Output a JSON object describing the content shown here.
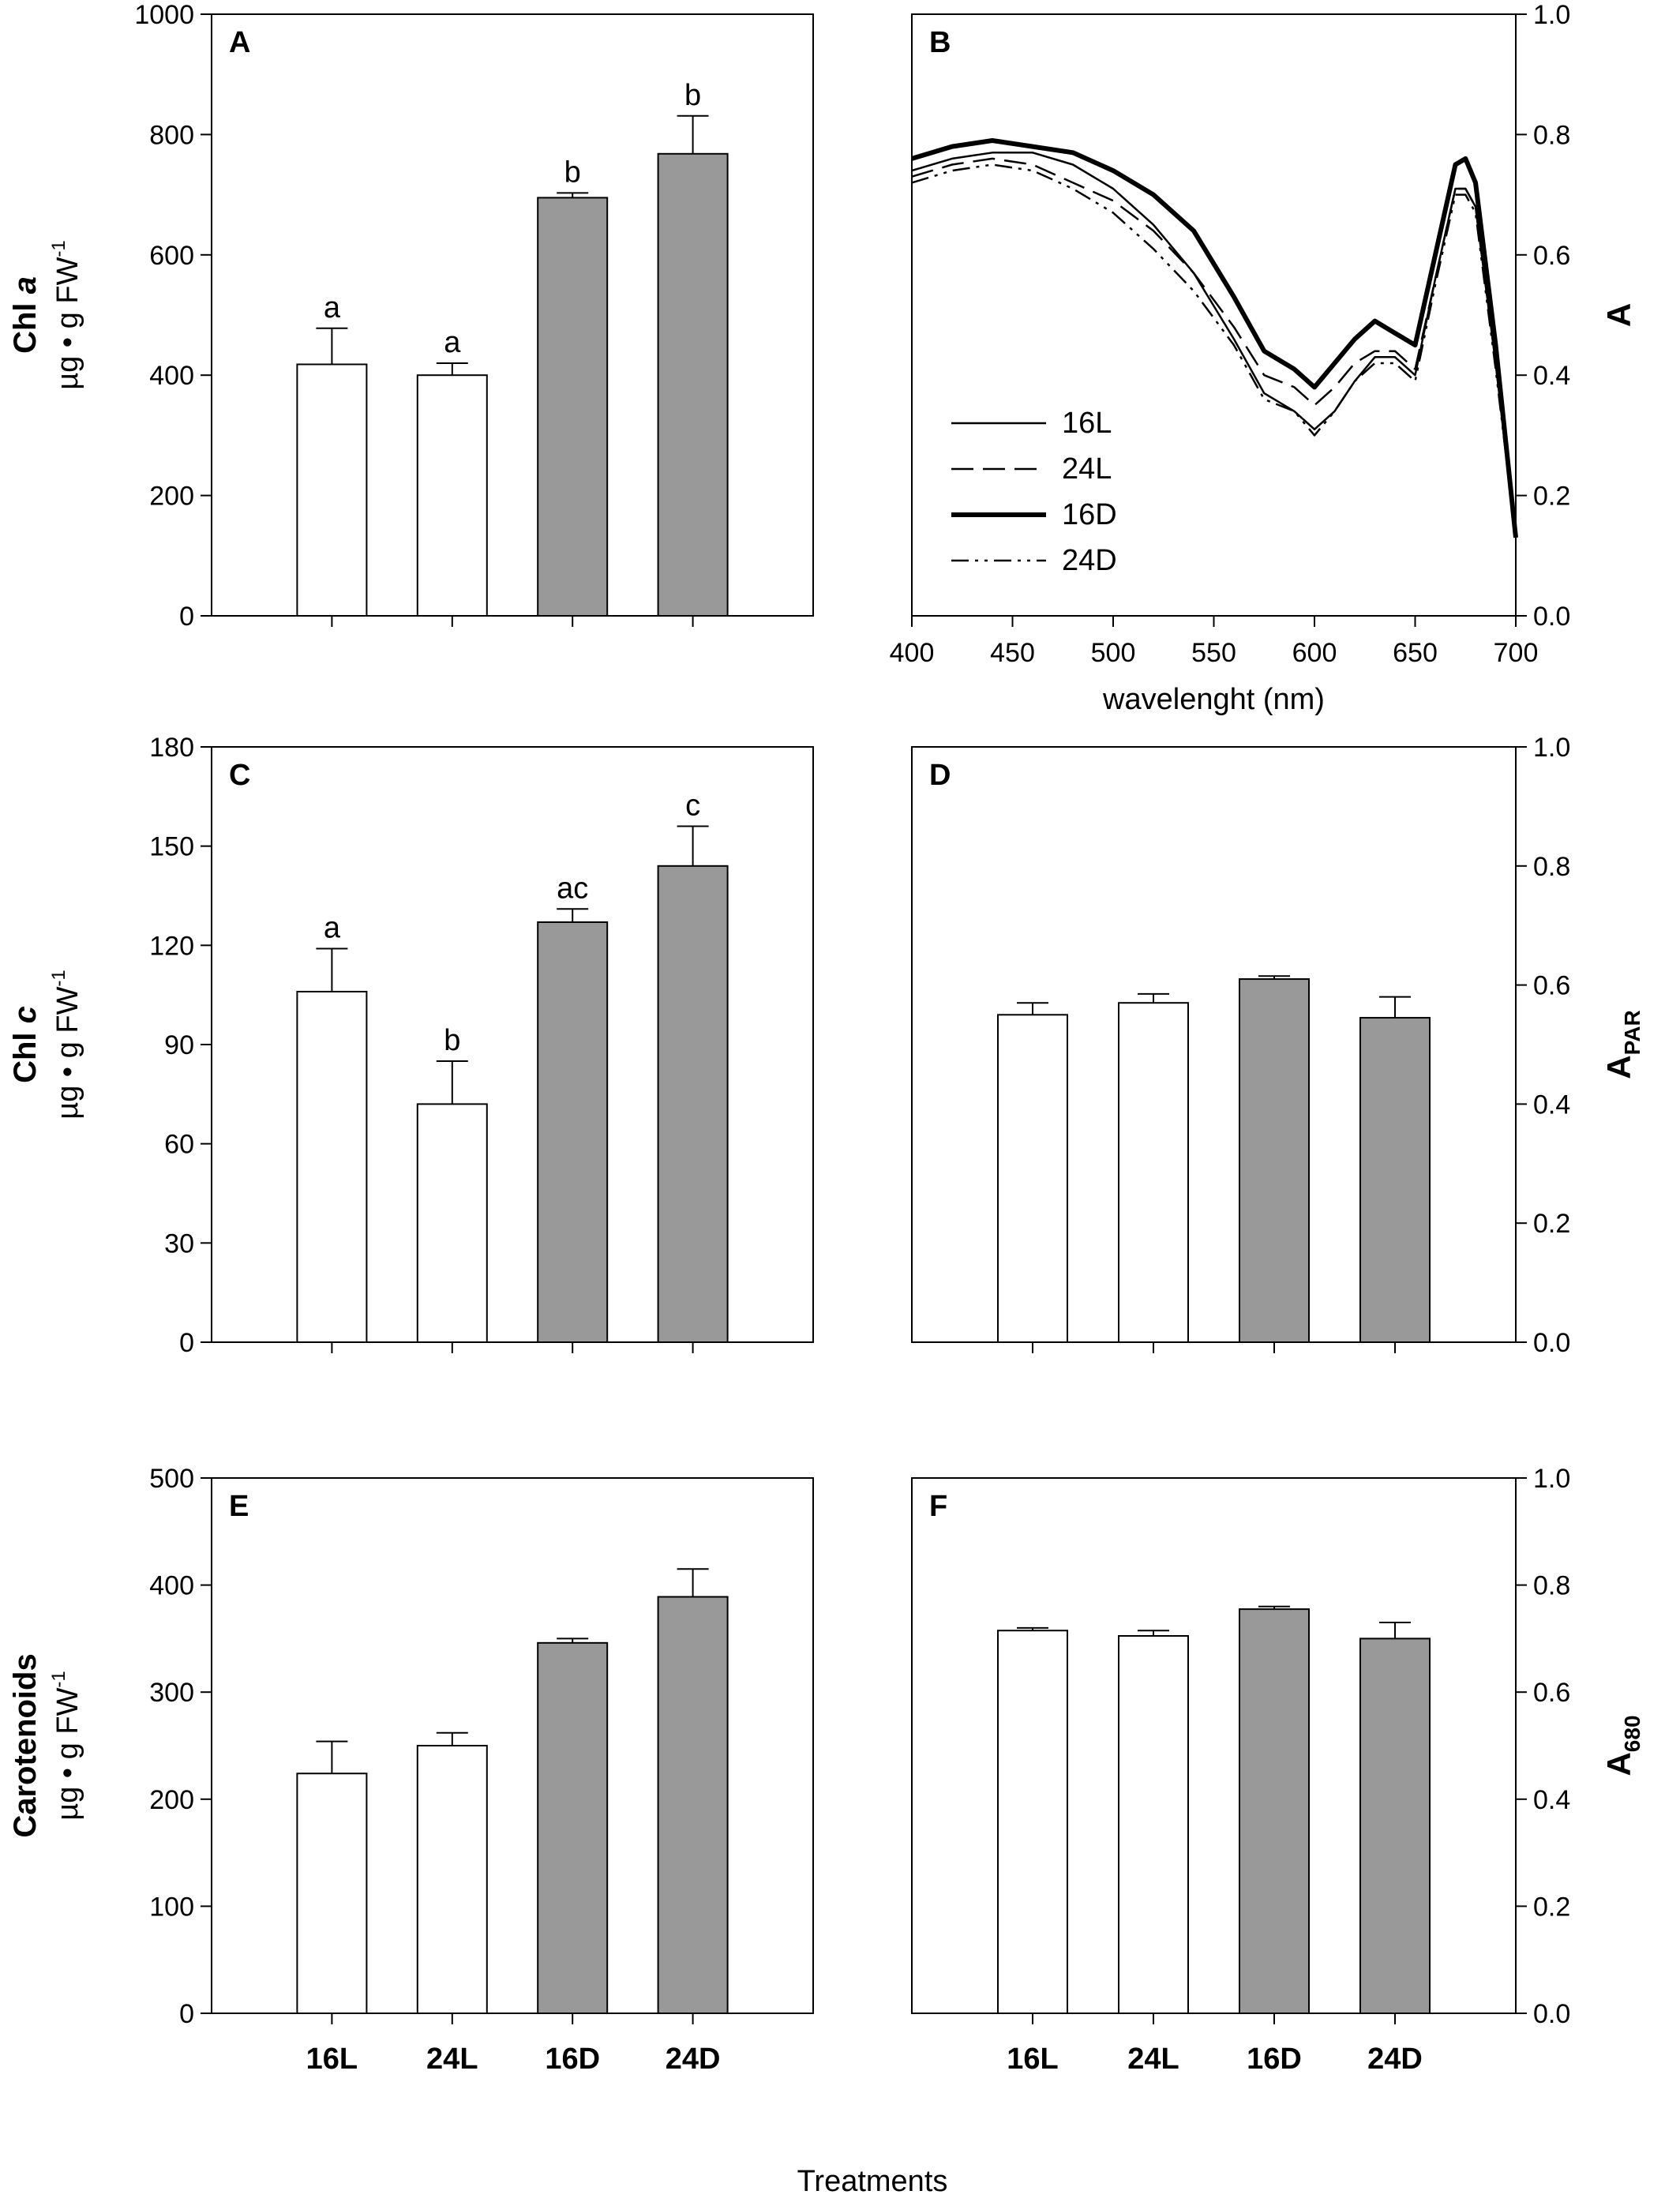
{
  "colors": {
    "control_bar": "#ffffff",
    "dark_bar": "#999999",
    "stroke": "#000000"
  },
  "x_axis_title": "Treatments",
  "categories": [
    "16L",
    "24L",
    "16D",
    "24D"
  ],
  "chart_data": [
    {
      "panel": "A",
      "type": "bar",
      "side": "left",
      "ylabel_main": "Chl a",
      "ylabel_unit": "µg • g FW",
      "ylim": [
        0,
        1000
      ],
      "yticks": [
        0,
        200,
        400,
        600,
        800,
        1000
      ],
      "categories": [
        "16L",
        "24L",
        "16D",
        "24D"
      ],
      "values": [
        418,
        400,
        695,
        768
      ],
      "errors": [
        60,
        20,
        8,
        63
      ],
      "letters": [
        "a",
        "a",
        "b",
        "b"
      ],
      "bar_colors": [
        "#ffffff",
        "#ffffff",
        "#999999",
        "#999999"
      ]
    },
    {
      "panel": "B",
      "type": "line",
      "side": "right",
      "ylabel_main": "A",
      "xlabel": "wavelenght (nm)",
      "xlim": [
        400,
        700
      ],
      "xticks": [
        400,
        450,
        500,
        550,
        600,
        650,
        700
      ],
      "ylim": [
        0,
        1.0
      ],
      "yticks": [
        0.0,
        0.2,
        0.4,
        0.6,
        0.8,
        1.0
      ],
      "legend_position": "bottom-left",
      "series": [
        {
          "name": "16L",
          "style": "solid",
          "x": [
            400,
            420,
            440,
            460,
            480,
            500,
            520,
            540,
            560,
            575,
            590,
            600,
            610,
            620,
            630,
            640,
            650,
            660,
            670,
            675,
            680,
            690,
            700
          ],
          "y": [
            0.74,
            0.76,
            0.77,
            0.77,
            0.75,
            0.71,
            0.65,
            0.57,
            0.46,
            0.37,
            0.34,
            0.31,
            0.34,
            0.39,
            0.43,
            0.43,
            0.4,
            0.56,
            0.71,
            0.71,
            0.68,
            0.42,
            0.13
          ]
        },
        {
          "name": "24L",
          "style": "dashed",
          "x": [
            400,
            420,
            440,
            460,
            480,
            500,
            520,
            540,
            560,
            575,
            590,
            600,
            610,
            620,
            630,
            640,
            650,
            660,
            670,
            675,
            680,
            690,
            700
          ],
          "y": [
            0.73,
            0.75,
            0.76,
            0.75,
            0.72,
            0.69,
            0.64,
            0.57,
            0.48,
            0.4,
            0.38,
            0.35,
            0.38,
            0.42,
            0.44,
            0.44,
            0.41,
            0.56,
            0.71,
            0.71,
            0.68,
            0.42,
            0.13
          ]
        },
        {
          "name": "16D",
          "style": "bold",
          "x": [
            400,
            420,
            440,
            460,
            480,
            500,
            520,
            540,
            560,
            575,
            590,
            600,
            610,
            620,
            630,
            640,
            650,
            660,
            670,
            675,
            680,
            690,
            700
          ],
          "y": [
            0.76,
            0.78,
            0.79,
            0.78,
            0.77,
            0.74,
            0.7,
            0.64,
            0.53,
            0.44,
            0.41,
            0.38,
            0.42,
            0.46,
            0.49,
            0.47,
            0.45,
            0.6,
            0.75,
            0.76,
            0.72,
            0.45,
            0.13
          ]
        },
        {
          "name": "24D",
          "style": "dash-dot-dot",
          "x": [
            400,
            420,
            440,
            460,
            480,
            500,
            520,
            540,
            560,
            575,
            590,
            600,
            610,
            620,
            630,
            640,
            650,
            660,
            670,
            675,
            680,
            690,
            700
          ],
          "y": [
            0.72,
            0.74,
            0.75,
            0.74,
            0.71,
            0.67,
            0.61,
            0.54,
            0.45,
            0.36,
            0.34,
            0.3,
            0.34,
            0.39,
            0.42,
            0.42,
            0.39,
            0.55,
            0.7,
            0.7,
            0.67,
            0.41,
            0.13
          ]
        }
      ]
    },
    {
      "panel": "C",
      "type": "bar",
      "side": "left",
      "ylabel_main": "Chl c",
      "ylabel_unit": "µg • g FW",
      "ylim": [
        0,
        180
      ],
      "yticks": [
        0,
        30,
        60,
        90,
        120,
        150,
        180
      ],
      "categories": [
        "16L",
        "24L",
        "16D",
        "24D"
      ],
      "values": [
        106,
        72,
        127,
        144
      ],
      "errors": [
        13,
        13,
        4,
        12
      ],
      "letters": [
        "a",
        "b",
        "ac",
        "c"
      ],
      "bar_colors": [
        "#ffffff",
        "#ffffff",
        "#999999",
        "#999999"
      ]
    },
    {
      "panel": "D",
      "type": "bar",
      "side": "right",
      "ylabel_main": "A",
      "ylabel_sub": "PAR",
      "ylim": [
        0,
        1.0
      ],
      "yticks": [
        0.0,
        0.2,
        0.4,
        0.6,
        0.8,
        1.0
      ],
      "categories": [
        "16L",
        "24L",
        "16D",
        "24D"
      ],
      "values": [
        0.55,
        0.57,
        0.61,
        0.545
      ],
      "errors": [
        0.02,
        0.015,
        0.005,
        0.035
      ],
      "bar_colors": [
        "#ffffff",
        "#ffffff",
        "#999999",
        "#999999"
      ]
    },
    {
      "panel": "E",
      "type": "bar",
      "side": "left",
      "ylabel_main": "Carotenoids",
      "ylabel_unit": "µg • g FW",
      "ylim": [
        0,
        500
      ],
      "yticks": [
        0,
        100,
        200,
        300,
        400,
        500
      ],
      "categories": [
        "16L",
        "24L",
        "16D",
        "24D"
      ],
      "values": [
        224,
        250,
        346,
        389
      ],
      "errors": [
        30,
        12,
        4,
        26
      ],
      "bar_colors": [
        "#ffffff",
        "#ffffff",
        "#999999",
        "#999999"
      ],
      "show_xticklabels": true
    },
    {
      "panel": "F",
      "type": "bar",
      "side": "right",
      "ylabel_main": "A",
      "ylabel_sub": "680",
      "ylim": [
        0,
        1.0
      ],
      "yticks": [
        0.0,
        0.2,
        0.4,
        0.6,
        0.8,
        1.0
      ],
      "categories": [
        "16L",
        "24L",
        "16D",
        "24D"
      ],
      "values": [
        0.715,
        0.705,
        0.755,
        0.7
      ],
      "errors": [
        0.005,
        0.01,
        0.005,
        0.03
      ],
      "bar_colors": [
        "#ffffff",
        "#ffffff",
        "#999999",
        "#999999"
      ],
      "show_xticklabels": true
    }
  ]
}
